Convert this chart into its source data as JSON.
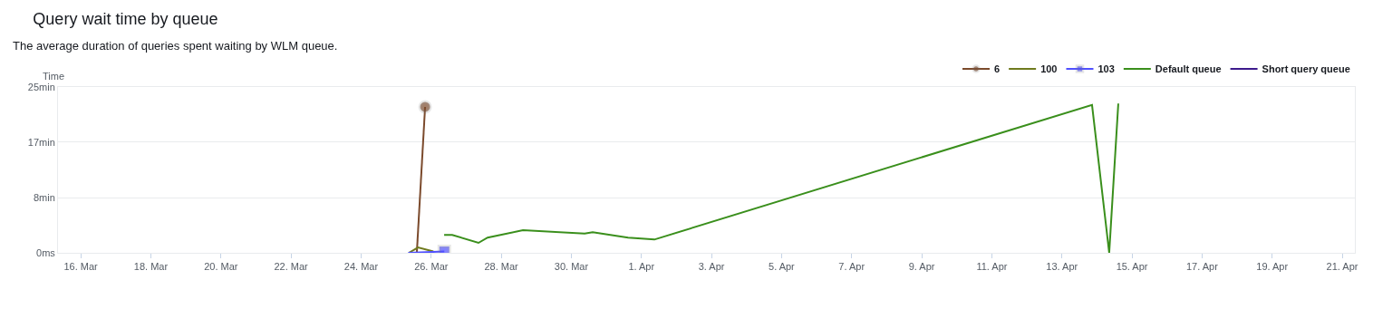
{
  "chart_data": {
    "type": "line",
    "title": "Query wait time by queue",
    "subtitle": "The average duration of queries spent waiting by WLM queue.",
    "ylabel": "Time",
    "xlim": [
      "--03-15T08:24",
      "--04-21T08:40"
    ],
    "xticks": [
      {
        "value": "--03-16",
        "label": "16. Mar"
      },
      {
        "value": "--03-18",
        "label": "18. Mar"
      },
      {
        "value": "--03-20",
        "label": "20. Mar"
      },
      {
        "value": "--03-22",
        "label": "22. Mar"
      },
      {
        "value": "--03-24",
        "label": "24. Mar"
      },
      {
        "value": "--03-26",
        "label": "26. Mar"
      },
      {
        "value": "--03-28",
        "label": "28. Mar"
      },
      {
        "value": "--03-30",
        "label": "30. Mar"
      },
      {
        "value": "--04-01",
        "label": "1. Apr"
      },
      {
        "value": "--04-03",
        "label": "3. Apr"
      },
      {
        "value": "--04-05",
        "label": "5. Apr"
      },
      {
        "value": "--04-07",
        "label": "7. Apr"
      },
      {
        "value": "--04-09",
        "label": "9. Apr"
      },
      {
        "value": "--04-11",
        "label": "11. Apr"
      },
      {
        "value": "--04-13",
        "label": "13. Apr"
      },
      {
        "value": "--04-15",
        "label": "15. Apr"
      },
      {
        "value": "--04-17",
        "label": "17. Apr"
      },
      {
        "value": "--04-19",
        "label": "19. Apr"
      },
      {
        "value": "--04-21",
        "label": "21. Apr"
      }
    ],
    "ylim": [
      0,
      25
    ],
    "yticks": [
      {
        "value": 0,
        "label": "0ms"
      },
      {
        "value": 8.33,
        "label": "8min"
      },
      {
        "value": 16.67,
        "label": "17min"
      },
      {
        "value": 25,
        "label": "25min"
      }
    ],
    "grid": "y",
    "legend": "top right",
    "line_style": "solid",
    "series": [
      {
        "name": "6",
        "color": "#7b4a2c",
        "marker": "circle",
        "x": [
          "--03-25T14:10",
          "--03-25T19:50"
        ],
        "values": [
          0,
          22
        ]
      },
      {
        "name": "100",
        "color": "#6f7a1e",
        "x": [
          "--03-25T08:40",
          "--03-25T15:00",
          "--03-26T01:30"
        ],
        "values": [
          0,
          0.8,
          0.2
        ]
      },
      {
        "name": "103",
        "color": "#5050ff",
        "marker": "square",
        "x": [
          "--03-25T08:20",
          "--03-26T09:00"
        ],
        "values": [
          0,
          0.2
        ]
      },
      {
        "name": "Default queue",
        "color": "#3a8f1c",
        "x": [
          "--03-26T08:53",
          "--03-26T14:24",
          "--03-27T08:24",
          "--03-27T14:38",
          "--03-28T14:53",
          "--03-30T09:07",
          "--03-30T14:38",
          "--03-31T14:53",
          "--04-01T08:53",
          "--04-13T20:38",
          "--04-14T08:24",
          "--04-14T14:38"
        ],
        "values": [
          2.7,
          2.7,
          1.5,
          2.3,
          3.4,
          2.9,
          3.1,
          2.3,
          2.0,
          22.3,
          0,
          22.5
        ]
      },
      {
        "name": "Short query queue",
        "color": "#3d1a8c"
      }
    ]
  }
}
